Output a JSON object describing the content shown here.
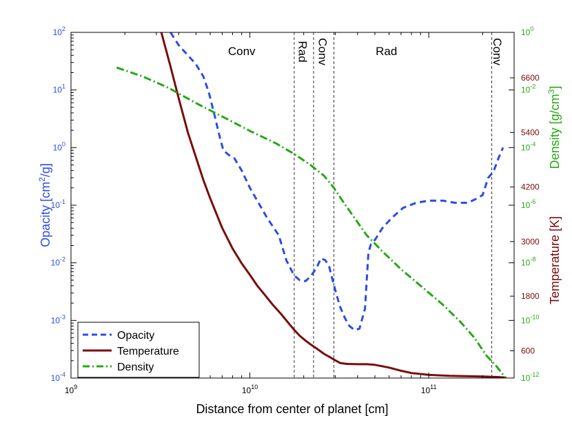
{
  "colors": {
    "opacity": "#2b4be8",
    "temperature": "#7b0a0a",
    "density": "#22aa11",
    "frame": "#000000",
    "vline": "#333333"
  },
  "chart_data": {
    "type": "line",
    "title": "",
    "xlabel": "Distance from center of planet [cm]",
    "xscale": "log",
    "xlim": [
      1000000000,
      300000000000
    ],
    "x_ticks": [
      {
        "value": 1000000000,
        "base": "10",
        "exp": "9"
      },
      {
        "value": 10000000000,
        "base": "10",
        "exp": "10"
      },
      {
        "value": 100000000000,
        "base": "10",
        "exp": "11"
      }
    ],
    "y_left": {
      "label_main": "Opacity [cm",
      "label_sup": "2",
      "label_end": "/g]",
      "scale": "log",
      "lim": [
        0.0001,
        100
      ],
      "ticks": [
        {
          "value": 0.0001,
          "exp": "-4"
        },
        {
          "value": 0.001,
          "exp": "-3"
        },
        {
          "value": 0.01,
          "exp": "-2"
        },
        {
          "value": 0.1,
          "exp": "-1"
        },
        {
          "value": 1,
          "exp": "0"
        },
        {
          "value": 10,
          "exp": "1"
        },
        {
          "value": 100,
          "exp": "2"
        }
      ]
    },
    "y_right_density": {
      "label_main": "Density [g/cm",
      "label_sup": "3",
      "label_end": "]",
      "scale": "log",
      "lim": [
        1e-12,
        1
      ],
      "ticks": [
        {
          "value": 1e-12,
          "exp": "-12"
        },
        {
          "value": 1e-10,
          "exp": "-10"
        },
        {
          "value": 1e-08,
          "exp": "-8"
        },
        {
          "value": 1e-06,
          "exp": "-6"
        },
        {
          "value": 0.0001,
          "exp": "-4"
        },
        {
          "value": 0.01,
          "exp": "-2"
        },
        {
          "value": 1,
          "exp": "0"
        }
      ]
    },
    "y_right_temperature": {
      "label": "Temperature [K]",
      "scale": "linear",
      "lim": [
        0,
        7600
      ],
      "ticks": [
        "600",
        "1800",
        "3000",
        "4200",
        "5400",
        "6600"
      ]
    },
    "regions": {
      "boundaries": [
        17700000000,
        22700000000,
        29500000000,
        225000000000
      ],
      "labels": [
        {
          "text": "Conv",
          "x": 9000000000,
          "rotated": false
        },
        {
          "text": "Rad",
          "x": 19800000000,
          "rotated": true
        },
        {
          "text": "Conv",
          "x": 25600000000,
          "rotated": true
        },
        {
          "text": "Rad",
          "x": 58000000000,
          "rotated": false
        },
        {
          "text": "Conv",
          "x": 242000000000,
          "rotated": true
        }
      ]
    },
    "legend": {
      "position": "bottom-left",
      "entries": [
        "Opacity",
        "Temperature",
        "Density"
      ]
    },
    "series": [
      {
        "name": "Opacity",
        "axis": "left",
        "style": "dashed",
        "x": [
          3600000000,
          4000000000,
          4500000000,
          5000000000,
          5500000000,
          5900000000,
          6300000000,
          6700000000,
          7100000000,
          7600000000,
          8200000000,
          9000000000,
          10000000000,
          11000000000,
          12500000000,
          14500000000,
          16000000000,
          17700000000,
          19000000000,
          20500000000,
          22000000000,
          23500000000,
          25000000000,
          26500000000,
          27800000000,
          29000000000,
          30500000000,
          32000000000,
          34000000000,
          36000000000,
          38500000000,
          41000000000,
          44000000000,
          46000000000,
          47500000000,
          50000000000,
          55000000000,
          62000000000,
          72000000000,
          85000000000,
          100000000000,
          120000000000,
          140000000000,
          165000000000,
          185000000000,
          200000000000,
          215000000000,
          230000000000,
          245000000000,
          260000000000
        ],
        "y": [
          100,
          60,
          40,
          28,
          17,
          9,
          4,
          1.8,
          0.9,
          0.75,
          0.65,
          0.4,
          0.2,
          0.12,
          0.06,
          0.03,
          0.011,
          0.006,
          0.005,
          0.0048,
          0.006,
          0.008,
          0.012,
          0.011,
          0.0085,
          0.005,
          0.0028,
          0.0017,
          0.0011,
          0.0008,
          0.00068,
          0.00072,
          0.0016,
          0.015,
          0.021,
          0.025,
          0.04,
          0.06,
          0.09,
          0.11,
          0.12,
          0.12,
          0.11,
          0.11,
          0.13,
          0.15,
          0.3,
          0.38,
          0.65,
          1.0
        ]
      },
      {
        "name": "Temperature",
        "axis": "right_temperature",
        "style": "solid",
        "x": [
          3200000000,
          3600000000,
          4000000000,
          4500000000,
          5000000000,
          5500000000,
          6000000000,
          7000000000,
          8000000000,
          9000000000,
          10000000000,
          11000000000,
          12000000000,
          13500000000,
          15000000000,
          16500000000,
          17700000000,
          19000000000,
          20500000000,
          22000000000,
          24000000000,
          26000000000,
          28000000000,
          30000000000,
          32000000000,
          35000000000,
          40000000000,
          45000000000,
          50000000000,
          60000000000,
          70000000000,
          80000000000,
          100000000000,
          130000000000,
          160000000000,
          200000000000,
          240000000000,
          270000000000
        ],
        "y": [
          7600,
          6850,
          6150,
          5400,
          4850,
          4350,
          3950,
          3300,
          2850,
          2520,
          2270,
          2030,
          1850,
          1600,
          1400,
          1200,
          1060,
          930,
          820,
          730,
          630,
          530,
          460,
          390,
          330,
          310,
          305,
          305,
          290,
          230,
          160,
          110,
          70,
          50,
          42,
          35,
          22,
          12
        ]
      },
      {
        "name": "Density",
        "axis": "right_density",
        "style": "dashdot",
        "x": [
          1800000000,
          2500000000,
          3500000000,
          5000000000,
          7000000000,
          10000000000,
          14000000000,
          17700000000,
          22000000000,
          26000000000,
          29500000000,
          33000000000,
          38000000000,
          45000000000,
          55000000000,
          70000000000,
          90000000000,
          120000000000,
          150000000000,
          180000000000,
          210000000000,
          240000000000,
          270000000000
        ],
        "y": [
          0.06,
          0.03,
          0.012,
          0.0035,
          0.0012,
          0.00038,
          0.00014,
          6e-05,
          2.4e-05,
          1.05e-05,
          4e-06,
          1.4e-06,
          4e-07,
          9e-08,
          2.5e-08,
          6e-09,
          1.6e-09,
          3.5e-10,
          9e-11,
          2.5e-11,
          6e-12,
          2.5e-12,
          1e-12
        ]
      }
    ]
  }
}
